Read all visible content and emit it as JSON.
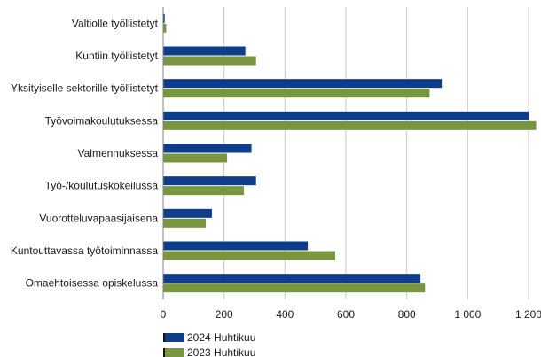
{
  "chart_data": {
    "type": "bar",
    "orientation": "horizontal",
    "categories": [
      "Valtiolle työllistetyt",
      "Kuntiin työllistetyt",
      "Yksityiselle sektorille työllistetyt",
      "Työvoimakoulutuksessa",
      "Valmennuksessa",
      "Työ-/koulutuskokeilussa",
      "Vuorotteluvapaasijaisena",
      "Kuntouttavassa työtoiminnassa",
      "Omaehtoisessa opiskelussa"
    ],
    "series": [
      {
        "name": "2024 Huhtikuu",
        "color": "#0e3d8c",
        "values": [
          5,
          270,
          915,
          1200,
          290,
          305,
          160,
          475,
          845
        ]
      },
      {
        "name": "2023 Huhtikuu",
        "color": "#77963f",
        "values": [
          10,
          305,
          875,
          1225,
          210,
          265,
          140,
          565,
          860
        ]
      }
    ],
    "xlim": [
      0,
      1200
    ],
    "xticks": [
      0,
      200,
      400,
      600,
      800,
      1000,
      1200
    ],
    "xtick_labels": [
      "0",
      "200",
      "400",
      "600",
      "800",
      "1 000",
      "1 200"
    ],
    "grid": "vertical",
    "legend_position": "bottom-left"
  }
}
